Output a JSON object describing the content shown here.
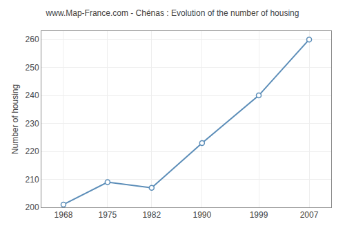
{
  "chart_data": {
    "type": "line",
    "title": "www.Map-France.com - Chénas : Evolution of the number of housing",
    "ylabel": "Number of housing",
    "x": [
      1968,
      1975,
      1982,
      1990,
      1999,
      2007
    ],
    "values": [
      201,
      209,
      207,
      223,
      240,
      260
    ],
    "color": "#5b8db8",
    "marker": "circle",
    "xlim": [
      1964.5,
      2010.5
    ],
    "ylim": [
      200,
      263
    ],
    "xticks": [
      1968,
      1975,
      1982,
      1990,
      1999,
      2007
    ],
    "yticks": [
      200,
      210,
      220,
      230,
      240,
      250,
      260
    ],
    "grid": true
  }
}
